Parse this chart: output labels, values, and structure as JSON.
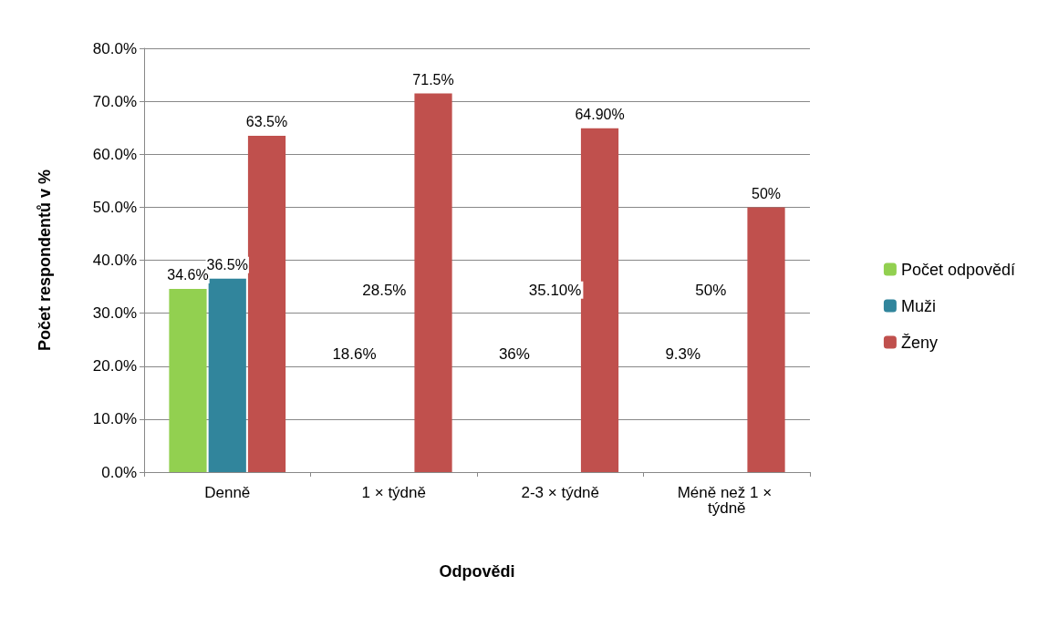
{
  "chart_data": {
    "type": "bar",
    "xlabel": "Odpovědi",
    "ylabel": "Počet respondentů v %",
    "categories": [
      "Denně",
      "1 × týdně",
      "2-3 × týdně",
      "Méně než 1 × týdně"
    ],
    "series": [
      {
        "name": "Počet odpovědí",
        "color": "#92d050",
        "values": [
          34.6,
          null,
          null,
          null
        ],
        "value_labels": [
          "34.6%",
          null,
          null,
          null
        ]
      },
      {
        "name": "Muži",
        "color": "#31859c",
        "values": [
          36.5,
          null,
          null,
          null
        ],
        "value_labels": [
          "36.5%",
          null,
          null,
          null
        ]
      },
      {
        "name": "Ženy",
        "color": "#c0504d",
        "values": [
          63.5,
          71.5,
          64.9,
          50
        ],
        "value_labels": [
          "63.5%",
          "71.5%",
          "64.90%",
          "50%"
        ]
      }
    ],
    "annotations": [
      "18.6%",
      "28.5%",
      "36%",
      "35.10%",
      "9.3%",
      "50%"
    ],
    "ylim": [
      0,
      80
    ],
    "yticks": [
      {
        "value": 0,
        "label": "0.0%"
      },
      {
        "value": 10,
        "label": "10.0%"
      },
      {
        "value": 20,
        "label": "20.0%"
      },
      {
        "value": 30,
        "label": "30.0%"
      },
      {
        "value": 40,
        "label": "40.0%"
      },
      {
        "value": 50,
        "label": "50.0%"
      },
      {
        "value": 60,
        "label": "60.0%"
      },
      {
        "value": 70,
        "label": "70.0%"
      },
      {
        "value": 80,
        "label": "80.0%"
      }
    ],
    "grid": "y",
    "legend": "right"
  }
}
